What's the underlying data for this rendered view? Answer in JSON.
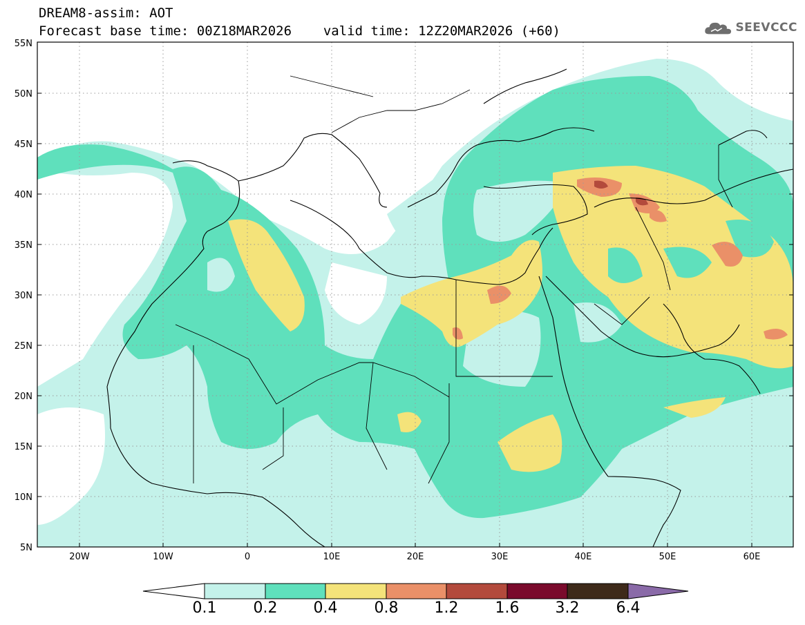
{
  "header": {
    "line1": "DREAM8-assim: AOT",
    "base_time": "Forecast base time: 00Z18MAR2026",
    "valid_time": "valid time: 12Z20MAR2026 (+60)"
  },
  "logo": {
    "text": "SEEVCCC",
    "icon": "cloud-icon",
    "color": "#6e6e6e"
  },
  "map": {
    "lon_range": [
      -25,
      65
    ],
    "lat_range": [
      5,
      55
    ],
    "lat_labels": [
      "55N",
      "50N",
      "45N",
      "40N",
      "35N",
      "30N",
      "25N",
      "20N",
      "15N",
      "10N",
      "5N"
    ],
    "lon_labels": [
      "20W",
      "10W",
      "0",
      "10E",
      "20E",
      "30E",
      "40E",
      "50E",
      "60E"
    ]
  },
  "colorbar": {
    "labels": [
      "0.1",
      "0.2",
      "0.4",
      "0.8",
      "1.2",
      "1.6",
      "3.2",
      "6.4"
    ],
    "colors": [
      "#ffffff",
      "#c4f2ea",
      "#5fe0bc",
      "#f4e37a",
      "#ea9068",
      "#b34a3c",
      "#7a0a2c",
      "#3e2a1a",
      "#8a6aa8"
    ]
  }
}
